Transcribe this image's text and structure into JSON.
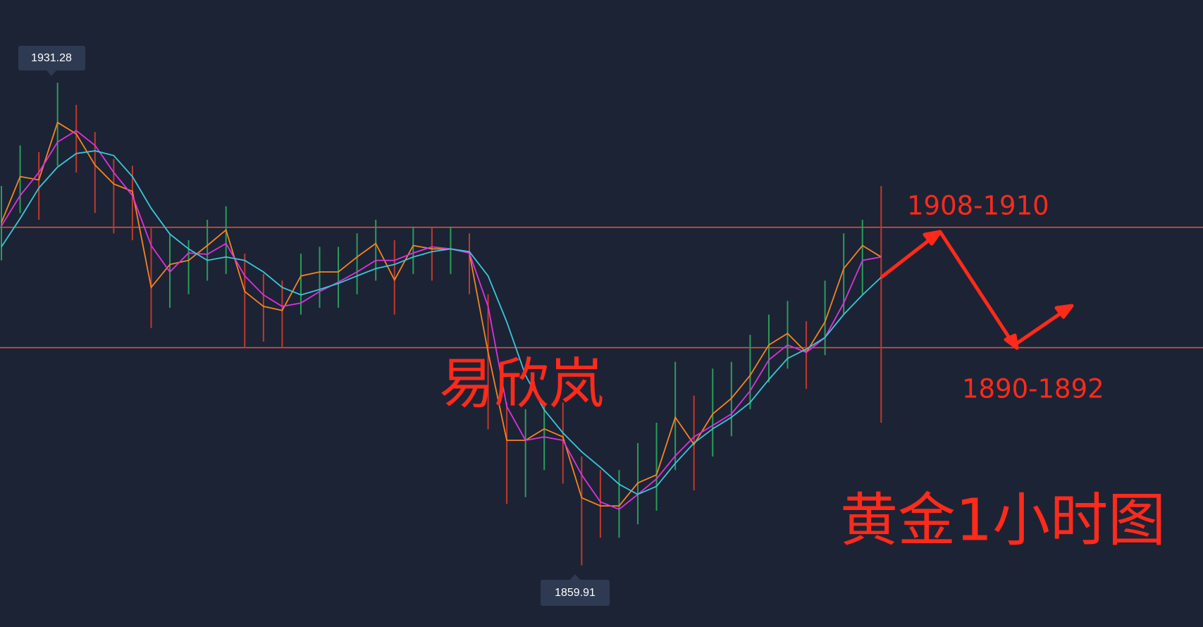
{
  "chart_data": {
    "type": "line",
    "background": "#1c2335",
    "categories": [
      null,
      null,
      null,
      null,
      null,
      null,
      null,
      null,
      null,
      null,
      null,
      null,
      null,
      null,
      null,
      null,
      null,
      null,
      null,
      null,
      null,
      null,
      null,
      null,
      null,
      null,
      null,
      null,
      null,
      null,
      null,
      null,
      null,
      null,
      null,
      null,
      null,
      null,
      null,
      null,
      null,
      null,
      null,
      null,
      null,
      null,
      null,
      null
    ],
    "ylim": [
      1850.8,
      1943.5
    ],
    "series": [
      {
        "color": "#f5841f",
        "values": [
          1910.6,
          1917.4,
          1916.9,
          1925.4,
          1923.7,
          1919.1,
          1916.3,
          1915.2,
          1901.0,
          1904.4,
          1905.0,
          1907.2,
          1909.5,
          1900.4,
          1898.2,
          1897.6,
          1902.7,
          1903.3,
          1903.3,
          1905.5,
          1907.5,
          1902.1,
          1907.2,
          1906.7,
          1906.7,
          1906.1,
          1891.4,
          1878.4,
          1878.4,
          1880.1,
          1878.9,
          1869.9,
          1868.7,
          1868.7,
          1872.1,
          1873.3,
          1881.8,
          1877.8,
          1882.3,
          1884.6,
          1888.0,
          1892.5,
          1894.2,
          1891.4,
          1895.9,
          1903.8,
          1907.2,
          1905.5
        ]
      },
      {
        "color": "#e030e0",
        "values": [
          1910.1,
          1914.6,
          1918.0,
          1922.5,
          1924.2,
          1922.0,
          1918.0,
          1914.6,
          1907.2,
          1903.3,
          1906.1,
          1905.9,
          1907.5,
          1902.7,
          1899.9,
          1898.2,
          1898.7,
          1900.4,
          1901.8,
          1903.3,
          1905.0,
          1905.0,
          1906.1,
          1907.0,
          1906.7,
          1906.1,
          1898.2,
          1883.4,
          1878.4,
          1878.9,
          1878.4,
          1873.3,
          1869.3,
          1868.2,
          1870.4,
          1872.7,
          1876.1,
          1878.9,
          1880.6,
          1882.3,
          1885.7,
          1890.3,
          1892.5,
          1891.4,
          1893.6,
          1898.7,
          1905.0,
          1905.5
        ]
      },
      {
        "color": "#38c8d8",
        "values": [
          1907.0,
          1911.2,
          1915.7,
          1918.8,
          1920.8,
          1921.2,
          1920.5,
          1917.4,
          1912.7,
          1908.9,
          1906.7,
          1905.0,
          1905.5,
          1905.0,
          1903.3,
          1901.0,
          1899.9,
          1900.7,
          1901.6,
          1902.7,
          1903.8,
          1904.4,
          1905.5,
          1906.3,
          1906.7,
          1906.3,
          1902.7,
          1895.9,
          1888.0,
          1882.9,
          1879.5,
          1876.7,
          1874.4,
          1871.9,
          1870.4,
          1871.6,
          1875.0,
          1878.0,
          1880.1,
          1881.8,
          1884.0,
          1887.4,
          1890.5,
          1891.9,
          1893.6,
          1897.0,
          1899.9,
          1902.5
        ]
      }
    ],
    "highs": [
      1916,
      1922,
      1921,
      1931.28,
      1928,
      1924,
      1920,
      1919,
      1910,
      1909,
      1908,
      1911,
      1913,
      1906,
      1903,
      1902,
      1906,
      1907,
      1907,
      1909,
      1911,
      1908,
      1910,
      1910,
      1910,
      1909,
      1900,
      1884,
      1883,
      1884,
      1884,
      1876,
      1874,
      1874,
      1878,
      1881,
      1890,
      1885,
      1889,
      1890,
      1894,
      1897,
      1899,
      1896,
      1902,
      1909,
      1911,
      1916
    ],
    "lows": [
      1905,
      1912,
      1911,
      1919,
      1918,
      1912,
      1909,
      1908,
      1895,
      1898,
      1900,
      1902,
      1903,
      1892,
      1893,
      1892,
      1897,
      1898,
      1898,
      1900,
      1902,
      1897,
      1903,
      1902,
      1903,
      1900,
      1880,
      1869,
      1870,
      1874,
      1872,
      1859.91,
      1864,
      1864,
      1866,
      1868,
      1874,
      1871,
      1876,
      1879,
      1883,
      1887,
      1889,
      1886,
      1891,
      1897,
      1900,
      1881
    ],
    "up_color": "#2a9d5a",
    "down_color": "#c0392b",
    "levels": [
      1909.9,
      1892.1
    ],
    "level_color": "#e8553e",
    "annotations": [
      "易欣岚",
      "1908-1910",
      "1890-1892",
      "黄金1小时图"
    ],
    "annotation_color": "#ff2a1a"
  }
}
